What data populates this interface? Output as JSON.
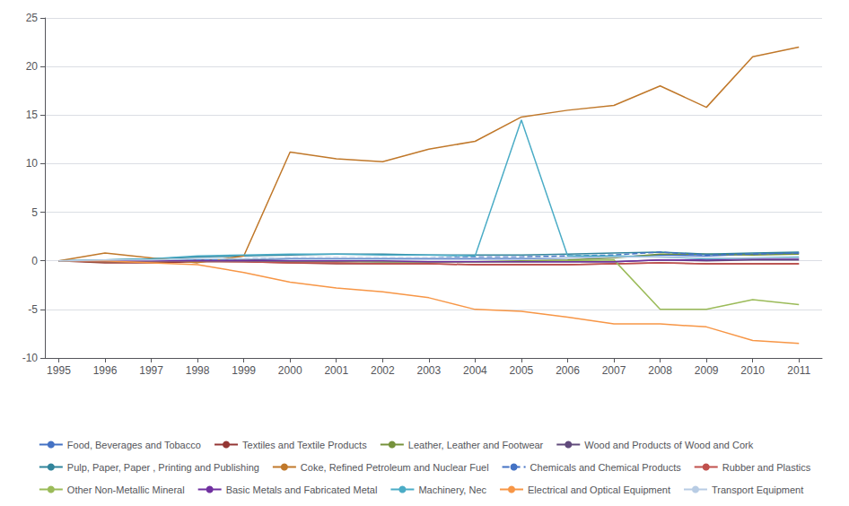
{
  "chart_data": {
    "type": "line",
    "x": [
      1995,
      1996,
      1997,
      1998,
      1999,
      2000,
      2001,
      2002,
      2003,
      2004,
      2005,
      2006,
      2007,
      2008,
      2009,
      2010,
      2011
    ],
    "series": [
      {
        "name": "Food, Beverages and Tobacco",
        "color": "#4472C4",
        "line_style": "solid",
        "values": [
          0,
          -0.1,
          0.0,
          0.1,
          0.1,
          0.2,
          0.2,
          0.2,
          0.2,
          0.2,
          0.2,
          0.3,
          0.4,
          0.6,
          0.5,
          0.7,
          0.8
        ]
      },
      {
        "name": "Textiles and Textile Products",
        "color": "#943634",
        "line_style": "solid",
        "values": [
          0,
          -0.2,
          -0.2,
          -0.1,
          -0.1,
          -0.2,
          -0.3,
          -0.3,
          -0.3,
          -0.4,
          -0.4,
          -0.4,
          -0.3,
          -0.2,
          -0.3,
          -0.3,
          -0.3
        ]
      },
      {
        "name": "Leather, Leather and Footwear",
        "color": "#76923C",
        "line_style": "solid",
        "values": [
          0,
          -0.1,
          -0.1,
          0.0,
          0.0,
          -0.1,
          -0.1,
          -0.1,
          -0.1,
          -0.1,
          0.0,
          0.1,
          0.3,
          0.7,
          0.7,
          0.6,
          0.7
        ]
      },
      {
        "name": "Wood and Products of Wood and Cork",
        "color": "#604A7B",
        "line_style": "solid",
        "values": [
          0,
          0.0,
          0.0,
          0.1,
          0.1,
          0.0,
          0.0,
          -0.1,
          -0.1,
          -0.1,
          -0.1,
          -0.1,
          -0.1,
          0.1,
          0.0,
          0.1,
          0.1
        ]
      },
      {
        "name": "Pulp, Paper, Paper , Printing and Publishing",
        "color": "#31849B",
        "line_style": "solid",
        "values": [
          0,
          0.1,
          0.2,
          0.4,
          0.5,
          0.6,
          0.7,
          0.7,
          0.6,
          0.6,
          0.6,
          0.7,
          0.8,
          0.9,
          0.7,
          0.8,
          0.9
        ]
      },
      {
        "name": "Coke, Refined Petroleum and Nuclear Fuel",
        "color": "#C0782A",
        "line_style": "solid",
        "values": [
          0,
          0.8,
          0.3,
          -0.2,
          0.5,
          11.2,
          10.5,
          10.2,
          11.5,
          12.3,
          14.8,
          15.5,
          16.0,
          18.0,
          15.8,
          21.0,
          22.0
        ]
      },
      {
        "name": "Chemicals and Chemical Products",
        "color": "#4472C4",
        "line_style": "dashed",
        "values": [
          0,
          0.0,
          0.0,
          0.1,
          0.2,
          0.3,
          0.3,
          0.3,
          0.3,
          0.4,
          0.4,
          0.5,
          0.6,
          0.9,
          0.6,
          0.7,
          0.8
        ]
      },
      {
        "name": "Rubber and Plastics",
        "color": "#C0504D",
        "line_style": "solid",
        "values": [
          0,
          -0.1,
          -0.1,
          0.0,
          -0.1,
          -0.2,
          -0.2,
          -0.3,
          -0.3,
          -0.4,
          -0.4,
          -0.4,
          -0.3,
          -0.2,
          -0.3,
          -0.3,
          -0.3
        ]
      },
      {
        "name": "Other Non-Metallic Mineral",
        "color": "#9BBB59",
        "line_style": "solid",
        "values": [
          0,
          0.0,
          0.0,
          0.0,
          0.0,
          0.0,
          0.0,
          -0.1,
          -0.1,
          -0.1,
          -0.1,
          0.0,
          0.1,
          -5.0,
          -5.0,
          -4.0,
          -4.5
        ]
      },
      {
        "name": "Basic Metals and Fabricated Metal",
        "color": "#7030A0",
        "line_style": "solid",
        "values": [
          0,
          0.0,
          0.0,
          0.0,
          0.0,
          0.0,
          0.0,
          0.0,
          -0.1,
          -0.1,
          -0.1,
          -0.1,
          -0.1,
          0.1,
          0.1,
          0.2,
          0.2
        ]
      },
      {
        "name": "Machinery, Nec",
        "color": "#4BACC6",
        "line_style": "solid",
        "values": [
          0,
          0.1,
          0.2,
          0.5,
          0.6,
          0.7,
          0.7,
          0.6,
          0.6,
          0.5,
          14.5,
          0.5,
          0.5,
          0.4,
          0.2,
          0.3,
          0.4
        ]
      },
      {
        "name": "Electrical and Optical Equipment",
        "color": "#F79646",
        "line_style": "solid",
        "values": [
          0,
          0.0,
          -0.2,
          -0.4,
          -1.2,
          -2.2,
          -2.8,
          -3.2,
          -3.8,
          -5.0,
          -5.2,
          -5.8,
          -6.5,
          -6.5,
          -6.8,
          -8.2,
          -8.5
        ]
      },
      {
        "name": "Transport Equipment",
        "color": "#B8CCE4",
        "line_style": "solid",
        "values": [
          0,
          0.1,
          0.1,
          0.2,
          0.2,
          0.3,
          0.3,
          0.3,
          0.3,
          0.3,
          0.3,
          0.3,
          0.4,
          0.4,
          0.3,
          0.3,
          0.3
        ]
      }
    ],
    "xlim": [
      1994.7,
      2011.5
    ],
    "xticks": [
      1995,
      1996,
      1997,
      1998,
      1999,
      2000,
      2001,
      2002,
      2003,
      2004,
      2005,
      2006,
      2007,
      2008,
      2009,
      2010,
      2011
    ],
    "ylim": [
      -10,
      25
    ],
    "yticks": [
      -10,
      -5,
      0,
      5,
      10,
      15,
      20,
      25
    ],
    "grid": true,
    "legend": "bottom"
  }
}
